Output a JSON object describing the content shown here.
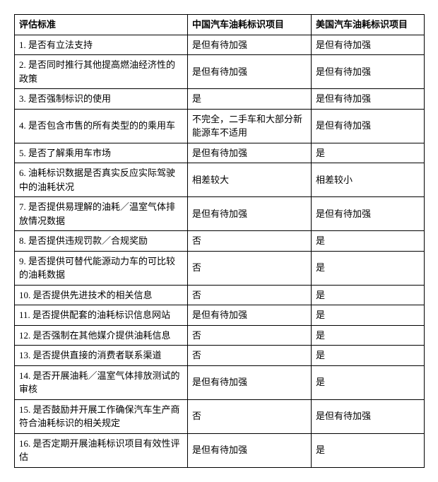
{
  "table": {
    "columns": [
      "评估标准",
      "中国汽车油耗标识项目",
      "美国汽车油耗标识项目"
    ],
    "rows": [
      [
        "1. 是否有立法支持",
        "是但有待加强",
        "是但有待加强"
      ],
      [
        "2. 是否同时推行其他提高燃油经济性的政策",
        "是但有待加强",
        "是但有待加强"
      ],
      [
        "3. 是否强制标识的使用",
        "是",
        "是但有待加强"
      ],
      [
        "4. 是否包含市售的所有类型的的乘用车",
        "不完全，二手车和大部分新能源车不适用",
        "是但有待加强"
      ],
      [
        "5. 是否了解乘用车市场",
        "是但有待加强",
        "是"
      ],
      [
        "6. 油耗标识数据是否真实反应实际驾驶中的油耗状况",
        "相差较大",
        "相差较小"
      ],
      [
        "7. 是否提供易理解的油耗／温室气体排放情况数据",
        "是但有待加强",
        "是但有待加强"
      ],
      [
        "8. 是否提供违规罚款／合规奖励",
        "否",
        "是"
      ],
      [
        "9. 是否提供可替代能源动力车的可比较的油耗数据",
        "否",
        "是"
      ],
      [
        "10. 是否提供先进技术的相关信息",
        "否",
        "是"
      ],
      [
        "11. 是否提供配套的油耗标识信息网站",
        "是但有待加强",
        "是"
      ],
      [
        "12. 是否强制在其他媒介提供油耗信息",
        "否",
        "是"
      ],
      [
        "13. 是否提供直接的消费者联系渠道",
        "否",
        "是"
      ],
      [
        "14. 是否开展油耗／温室气体排放测试的审核",
        "是但有待加强",
        "是"
      ],
      [
        "15. 是否鼓励并开展工作确保汽车生产商符合油耗标识的相关规定",
        "否",
        "是但有待加强"
      ],
      [
        "16. 是否定期开展油耗标识项目有效性评估",
        "是但有待加强",
        "是"
      ]
    ]
  }
}
